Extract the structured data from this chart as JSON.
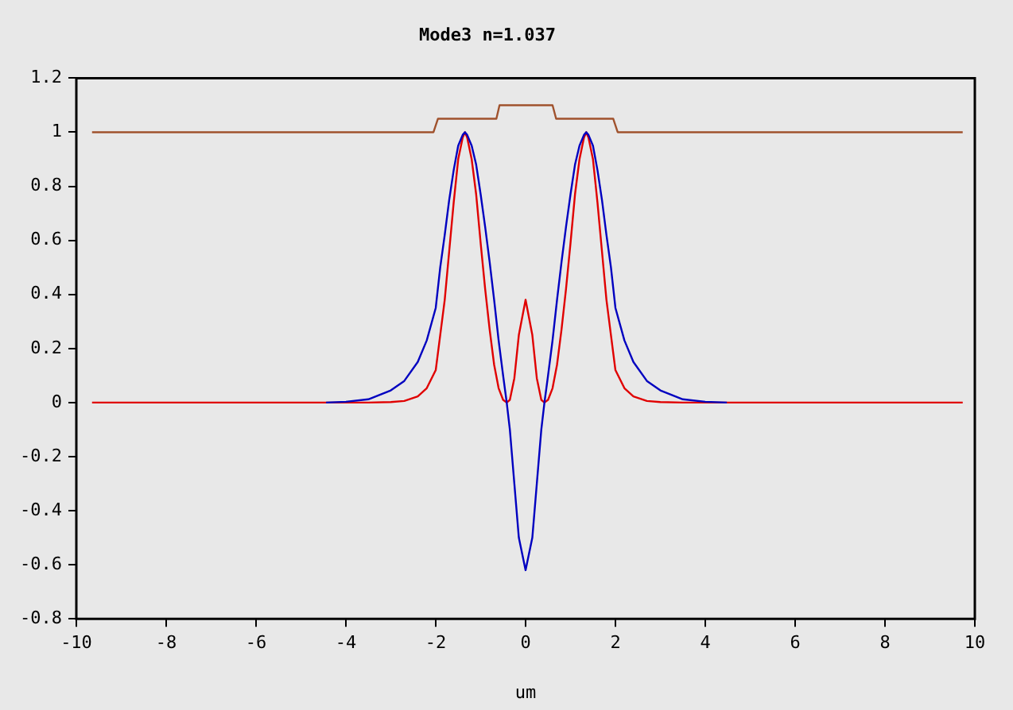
{
  "chart_data": {
    "type": "line",
    "title": "Mode3 n=1.037",
    "xlabel": "um",
    "xlim": [
      -10,
      10
    ],
    "xticks": [
      -10,
      -8,
      -6,
      -4,
      -2,
      0,
      2,
      4,
      6,
      8,
      10
    ],
    "ylim": [
      -0.8,
      1.2
    ],
    "yticks": [
      -0.8,
      -0.6,
      -0.4,
      -0.2,
      0,
      0.2,
      0.4,
      0.6,
      0.8,
      1,
      1.2
    ],
    "series": [
      {
        "color": "#a0522d",
        "x": [
          -9.65,
          -2.05,
          -1.95,
          -0.65,
          -0.58,
          0.6,
          0.68,
          1.95,
          2.05,
          9.73
        ],
        "values": [
          1,
          1,
          1.05,
          1.05,
          1.1,
          1.1,
          1.05,
          1.05,
          1,
          1
        ]
      },
      {
        "color": "#0000c0",
        "x": [
          -4.44,
          -4,
          -3.5,
          -3,
          -2.7,
          -2.4,
          -2.2,
          -2,
          -1.9,
          -1.8,
          -1.7,
          -1.6,
          -1.5,
          -1.4,
          -1.35,
          -1.3,
          -1.2,
          -1.1,
          -1,
          -0.9,
          -0.8,
          -0.7,
          -0.6,
          -0.5,
          -0.42,
          -0.35,
          -0.25,
          -0.15,
          0,
          0.15,
          0.25,
          0.35,
          0.42,
          0.5,
          0.6,
          0.7,
          0.8,
          0.9,
          1,
          1.1,
          1.2,
          1.3,
          1.35,
          1.4,
          1.5,
          1.6,
          1.7,
          1.8,
          1.9,
          2,
          2.2,
          2.4,
          2.7,
          3,
          3.5,
          4,
          4.48
        ],
        "values": [
          0,
          0.003,
          0.012,
          0.045,
          0.08,
          0.15,
          0.23,
          0.35,
          0.5,
          0.62,
          0.75,
          0.86,
          0.95,
          0.99,
          1,
          0.99,
          0.95,
          0.88,
          0.77,
          0.65,
          0.52,
          0.38,
          0.23,
          0.1,
          0,
          -0.1,
          -0.3,
          -0.5,
          -0.62,
          -0.5,
          -0.3,
          -0.1,
          0,
          0.1,
          0.23,
          0.38,
          0.52,
          0.65,
          0.77,
          0.88,
          0.95,
          0.99,
          1,
          0.99,
          0.95,
          0.86,
          0.75,
          0.62,
          0.5,
          0.35,
          0.23,
          0.15,
          0.08,
          0.045,
          0.012,
          0.003,
          0
        ]
      },
      {
        "color": "#e00000",
        "x": [
          -9.65,
          -3.5,
          -3,
          -2.7,
          -2.4,
          -2.2,
          -2,
          -1.9,
          -1.8,
          -1.7,
          -1.6,
          -1.5,
          -1.4,
          -1.35,
          -1.3,
          -1.2,
          -1.1,
          -1,
          -0.9,
          -0.8,
          -0.7,
          -0.6,
          -0.5,
          -0.42,
          -0.35,
          -0.25,
          -0.15,
          0,
          0.15,
          0.25,
          0.35,
          0.42,
          0.5,
          0.6,
          0.7,
          0.8,
          0.9,
          1,
          1.1,
          1.2,
          1.3,
          1.35,
          1.4,
          1.5,
          1.6,
          1.7,
          1.8,
          1.9,
          2,
          2.2,
          2.4,
          2.7,
          3,
          3.5,
          9.73
        ],
        "values": [
          0,
          0,
          0.002,
          0.006,
          0.023,
          0.053,
          0.12,
          0.25,
          0.38,
          0.56,
          0.74,
          0.9,
          0.98,
          1,
          0.98,
          0.9,
          0.77,
          0.59,
          0.42,
          0.27,
          0.14,
          0.053,
          0.01,
          0,
          0.01,
          0.09,
          0.25,
          0.38,
          0.25,
          0.09,
          0.01,
          0,
          0.01,
          0.053,
          0.14,
          0.27,
          0.42,
          0.59,
          0.77,
          0.9,
          0.98,
          1,
          0.98,
          0.9,
          0.74,
          0.56,
          0.38,
          0.25,
          0.12,
          0.053,
          0.023,
          0.006,
          0.002,
          0,
          0
        ]
      }
    ]
  }
}
